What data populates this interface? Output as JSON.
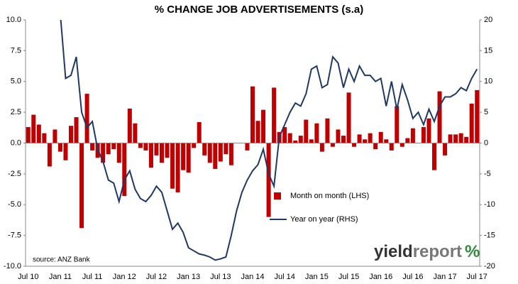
{
  "chart_data": {
    "type": "bar",
    "title": "% CHANGE JOB ADVERTISEMENTS (s.a)",
    "source": "source: ANZ Bank",
    "logo": {
      "part1": "yield",
      "part2": "report",
      "symbol": "%"
    },
    "categories": [
      "Jul 10",
      null,
      null,
      null,
      null,
      null,
      "Jan 11",
      null,
      null,
      null,
      null,
      null,
      "Jul 11",
      null,
      null,
      null,
      null,
      null,
      "Jan 12",
      null,
      null,
      null,
      null,
      null,
      "Jul 12",
      null,
      null,
      null,
      null,
      null,
      "Jan 13",
      null,
      null,
      null,
      null,
      null,
      "Jul 13",
      null,
      null,
      null,
      null,
      null,
      "Jan 14",
      null,
      null,
      null,
      null,
      null,
      "Jul 14",
      null,
      null,
      null,
      null,
      null,
      "Jan 15",
      null,
      null,
      null,
      null,
      null,
      "Jul 15",
      null,
      null,
      null,
      null,
      null,
      "Jan 16",
      null,
      null,
      null,
      null,
      null,
      "Jul 16",
      null,
      null,
      null,
      null,
      null,
      "Jan 17",
      null,
      null,
      null,
      null,
      null,
      "Jul 17"
    ],
    "series": [
      {
        "name": "Month on month (LHS)",
        "type": "bar",
        "color": "#c00000",
        "values": [
          1.3,
          2.3,
          1.5,
          0.8,
          -1.9,
          1.1,
          -0.7,
          -1.4,
          1.4,
          2.1,
          -6.9,
          4.0,
          -0.6,
          -1.2,
          -1.6,
          -0.9,
          -0.5,
          -1.6,
          -4.3,
          2.8,
          1.6,
          -0.4,
          -0.6,
          -2.0,
          -1.0,
          -1.6,
          -1.2,
          -3.7,
          -4.0,
          -2.2,
          -2.4,
          -0.4,
          1.7,
          -1.0,
          -1.6,
          -2.1,
          -1.5,
          -0.9,
          -1.8,
          0.0,
          0.0,
          -0.6,
          4.6,
          1.8,
          2.7,
          -6.0,
          4.5,
          0.9,
          1.3,
          0.8,
          0.2,
          0.6,
          1.9,
          0.3,
          1.6,
          -0.7,
          2.0,
          -0.3,
          1.1,
          0.6,
          4.1,
          -0.3,
          0.7,
          0.3,
          0.8,
          -0.5,
          0.9,
          0.3,
          -0.6,
          3.0,
          -0.3,
          0.4,
          1.2,
          0.0,
          1.3,
          2.0,
          -2.2,
          4.2,
          -1.0,
          0.7,
          0.7,
          0.8,
          0.5,
          3.2,
          4.3
        ]
      },
      {
        "name": "Year on year (RHS)",
        "type": "line",
        "axis": "y2",
        "color": "#1f3864",
        "values": [
          null,
          null,
          null,
          null,
          null,
          null,
          21,
          10.5,
          11,
          14,
          5,
          2.5,
          3.5,
          -1,
          -3,
          -6,
          -6.5,
          -9.5,
          -6,
          -4.5,
          -7.5,
          -9,
          -9.5,
          -8.5,
          -7,
          -8,
          -11,
          -14,
          -13,
          -14.5,
          -17,
          -17.5,
          -18,
          -18.2,
          -18.5,
          -19,
          -18.8,
          -18.5,
          -15,
          -11,
          -8,
          -6,
          -4.5,
          -3.5,
          -1,
          -5,
          -7,
          1,
          3,
          5,
          6.5,
          6,
          8,
          12,
          12.5,
          9,
          9.5,
          14,
          13,
          9,
          12,
          10,
          12.5,
          11,
          11,
          10,
          10.5,
          6,
          10,
          5.5,
          9.5,
          7,
          4,
          5,
          3,
          5.5,
          3.5,
          6,
          7.5,
          7.5,
          8,
          9,
          8.5,
          10.5,
          12
        ]
      }
    ],
    "ylim": [
      -10,
      10
    ],
    "yticks": [
      {
        "value": -10,
        "label": "-10.0"
      },
      {
        "value": -7.5,
        "label": "-7.5"
      },
      {
        "value": -5,
        "label": "-5.0"
      },
      {
        "value": -2.5,
        "label": "-2.5"
      },
      {
        "value": 0,
        "label": "0.0"
      },
      {
        "value": 2.5,
        "label": "2.5"
      },
      {
        "value": 5,
        "label": "5.0"
      },
      {
        "value": 7.5,
        "label": "7.5"
      },
      {
        "value": 10,
        "label": "10.0"
      }
    ],
    "y2lim": [
      -20,
      20
    ],
    "y2ticks": [
      -20,
      -15,
      -10,
      -5,
      0,
      5,
      10,
      15,
      20
    ],
    "grid": false
  }
}
